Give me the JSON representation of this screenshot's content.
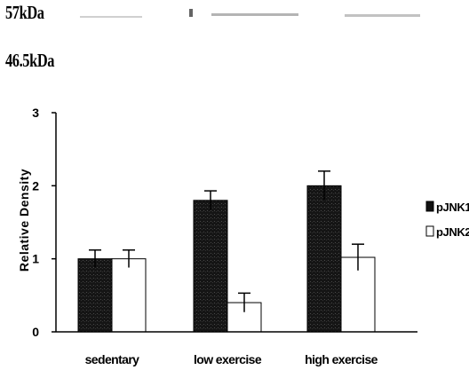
{
  "blot": {
    "marker_top": "57kDa",
    "marker_bottom": "46.5kDa"
  },
  "chart_data": {
    "type": "bar",
    "categories": [
      "sedentary",
      "low exercise",
      "high exercise"
    ],
    "series": [
      {
        "name": "pJNK1",
        "values": [
          1.0,
          1.8,
          2.0
        ],
        "errors": [
          0.12,
          0.13,
          0.2
        ],
        "color": "#111111"
      },
      {
        "name": "pJNK2",
        "values": [
          1.0,
          0.4,
          1.02
        ],
        "errors": [
          0.12,
          0.13,
          0.18
        ],
        "color": "#ffffff"
      }
    ],
    "xlabel": "",
    "ylabel": "Relative Density",
    "ylim": [
      0,
      3
    ],
    "yticks": [
      0,
      1,
      2,
      3
    ],
    "grid": false,
    "legend_position": "right"
  }
}
